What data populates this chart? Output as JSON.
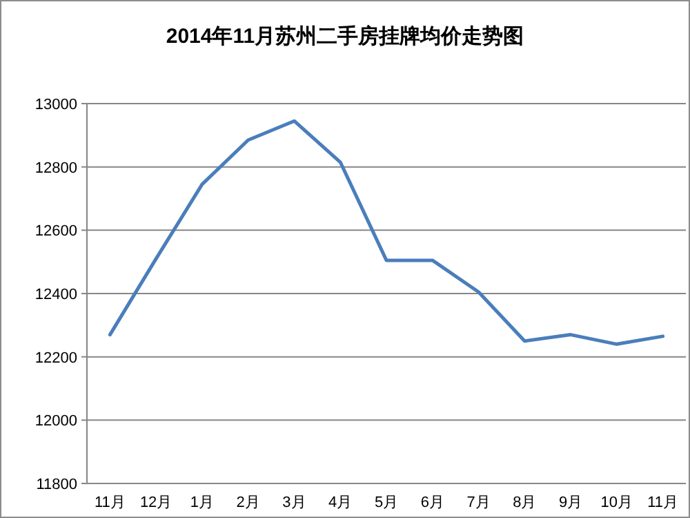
{
  "chart_data": {
    "type": "line",
    "title": "2014年11月苏州二手房挂牌均价走势图",
    "categories": [
      "11月",
      "12月",
      "1月",
      "2月",
      "3月",
      "4月",
      "5月",
      "6月",
      "7月",
      "8月",
      "9月",
      "10月",
      "11月"
    ],
    "series": [
      {
        "color": "#4a7ebb",
        "values": [
          12270,
          12510,
          12745,
          12885,
          12945,
          12815,
          12505,
          12505,
          12405,
          12250,
          12270,
          12240,
          12265
        ]
      }
    ],
    "ylim": [
      11800,
      13000
    ],
    "yticks": [
      11800,
      12000,
      12200,
      12400,
      12600,
      12800,
      13000
    ],
    "grid": "y",
    "marker": "none",
    "line_style": "solid"
  }
}
